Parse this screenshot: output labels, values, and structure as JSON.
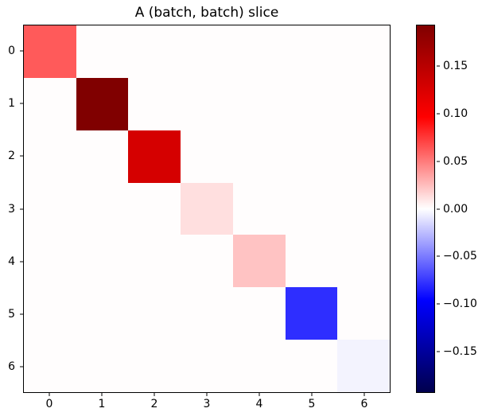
{
  "figure": {
    "background_color": "#ffffff",
    "axes_border_color": "#000000"
  },
  "chart_data": {
    "type": "heatmap",
    "title": "A (batch, batch) slice",
    "grid_size": 7,
    "x_tick_labels": [
      "0",
      "1",
      "2",
      "3",
      "4",
      "5",
      "6"
    ],
    "y_tick_labels": [
      "0",
      "1",
      "2",
      "3",
      "4",
      "5",
      "6"
    ],
    "colormap": "seismic",
    "vmin": -0.193,
    "vmax": 0.193,
    "diagonal_values_estimated": [
      0.063,
      0.193,
      0.128,
      0.012,
      0.023,
      -0.079,
      -0.005
    ],
    "off_diagonal_value": 0.0,
    "diagonal_cell_colors": [
      "#FF5A5A",
      "#800000",
      "#D50000",
      "#FFDFDF",
      "#FFC3C3",
      "#2E2EFF",
      "#F3F3FE"
    ],
    "off_diagonal_color": "#FFFDFD",
    "grid": false,
    "legend": "none",
    "colorbar": {
      "position": "right",
      "tick_labels": [
        "0.15",
        "0.10",
        "0.05",
        "0.00",
        "−0.05",
        "−0.10",
        "−0.15"
      ],
      "tick_values": [
        0.15,
        0.1,
        0.05,
        0.0,
        -0.05,
        -0.1,
        -0.15
      ],
      "gradient_top_to_bottom": [
        "#800000",
        "#FF0000",
        "#FFFFFF",
        "#0000FF",
        "#00004D"
      ],
      "gradient_stops_pct": [
        0,
        25,
        50,
        75,
        100
      ]
    }
  }
}
